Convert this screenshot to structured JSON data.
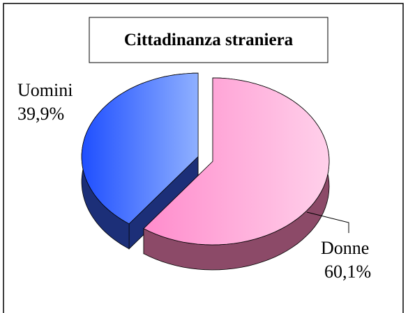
{
  "chart_data": {
    "type": "pie",
    "title": "Cittadinanza straniera",
    "categories": [
      "Uomini",
      "Donne"
    ],
    "values": [
      39.9,
      60.1
    ],
    "value_labels": [
      "39,9%",
      "60,1%"
    ],
    "colors": [
      "#4a78ff",
      "#ffa8d8"
    ]
  }
}
